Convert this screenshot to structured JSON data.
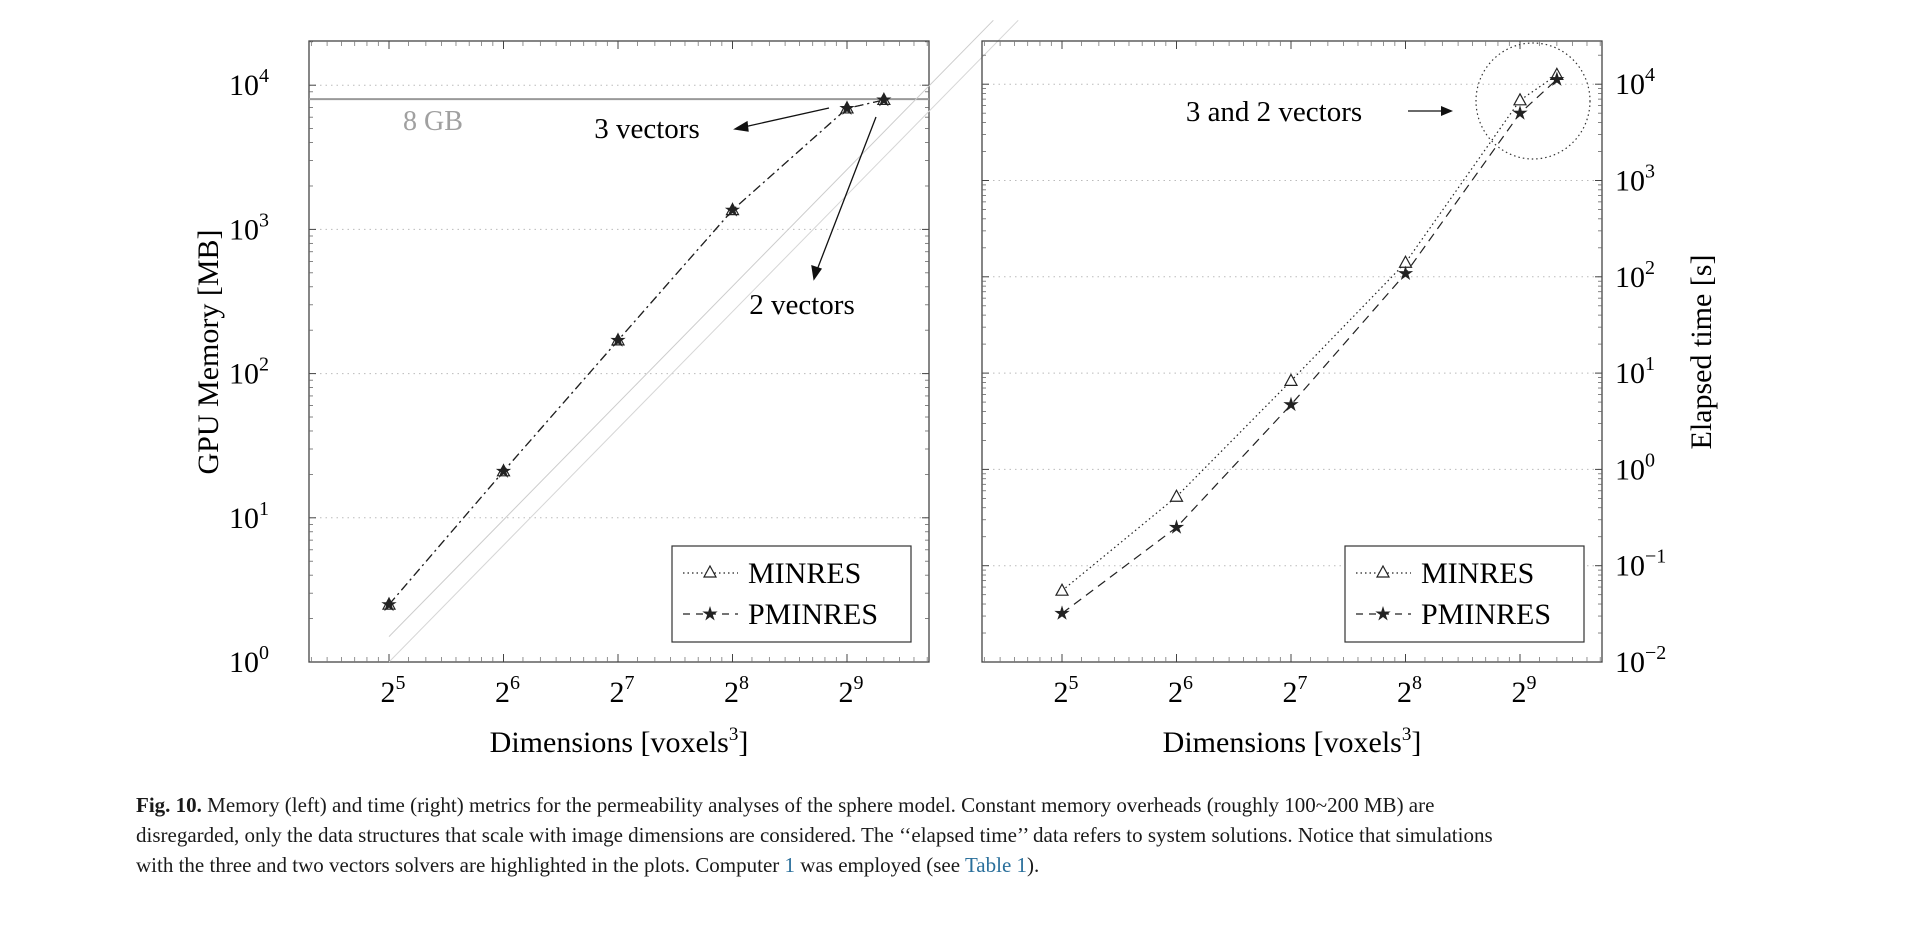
{
  "chart_data": [
    {
      "type": "line",
      "panel": "left",
      "ylabel": "GPU Memory [MB]",
      "xlabel": "Dimensions [voxels³]",
      "yscale": "log",
      "ylim": [
        1,
        20000
      ],
      "x_ticks": [
        {
          "base": "2",
          "exp": "5"
        },
        {
          "base": "2",
          "exp": "6"
        },
        {
          "base": "2",
          "exp": "7"
        },
        {
          "base": "2",
          "exp": "8"
        },
        {
          "base": "2",
          "exp": "9"
        }
      ],
      "y_ticks": [
        {
          "base": "10",
          "exp": "0"
        },
        {
          "base": "10",
          "exp": "1"
        },
        {
          "base": "10",
          "exp": "2"
        },
        {
          "base": "10",
          "exp": "3"
        },
        {
          "base": "10",
          "exp": "4"
        }
      ],
      "x": [
        32,
        64,
        128,
        256,
        512,
        640
      ],
      "series": [
        {
          "name": "MINRES",
          "marker": "triangle",
          "values": [
            2.5,
            21,
            170,
            1360,
            6900,
            7900
          ]
        },
        {
          "name": "PMINRES",
          "marker": "star",
          "values": [
            2.5,
            21,
            170,
            1360,
            6900,
            7900
          ]
        }
      ],
      "reference_line": {
        "label": "8 GB",
        "value": 8000
      },
      "annotations": [
        "3 vectors",
        "2 vectors"
      ],
      "grid": "horizontal dotted",
      "legend": "bottom-right"
    },
    {
      "type": "line",
      "panel": "right",
      "ylabel": "Elapsed time [s]",
      "xlabel": "Dimensions [voxels³]",
      "yscale": "log",
      "ylim": [
        0.01,
        20000
      ],
      "x_ticks": [
        {
          "base": "2",
          "exp": "5"
        },
        {
          "base": "2",
          "exp": "6"
        },
        {
          "base": "2",
          "exp": "7"
        },
        {
          "base": "2",
          "exp": "8"
        },
        {
          "base": "2",
          "exp": "9"
        }
      ],
      "y_ticks": [
        {
          "base": "10",
          "exp": "−2"
        },
        {
          "base": "10",
          "exp": "−1"
        },
        {
          "base": "10",
          "exp": "0"
        },
        {
          "base": "10",
          "exp": "1"
        },
        {
          "base": "10",
          "exp": "2"
        },
        {
          "base": "10",
          "exp": "3"
        },
        {
          "base": "10",
          "exp": "4"
        }
      ],
      "x": [
        32,
        64,
        128,
        256,
        512,
        640
      ],
      "series": [
        {
          "name": "MINRES",
          "marker": "triangle",
          "values": [
            0.055,
            0.52,
            8.3,
            140,
            6800,
            12500
          ]
        },
        {
          "name": "PMINRES",
          "marker": "star",
          "values": [
            0.032,
            0.25,
            4.7,
            108,
            5000,
            11200
          ]
        }
      ],
      "annotations": [
        "3 and 2 vectors"
      ],
      "grid": "horizontal dotted",
      "legend": "bottom-right"
    }
  ],
  "caption": {
    "label": "Fig. 10.",
    "line1": " Memory (left) and time (right) metrics for the permeability analyses of the sphere model. Constant memory overheads (roughly 100~200 MB) are",
    "line2": "disregarded, only the data structures that scale with image dimensions are considered. The ‘‘elapsed time’’ data refers to system solutions. Notice that simulations",
    "line3a": "with the three and two vectors solvers are highlighted in the plots. Computer ",
    "link1": "1",
    "line3b": " was employed (see ",
    "link2": "Table 1",
    "line3c": ")."
  }
}
